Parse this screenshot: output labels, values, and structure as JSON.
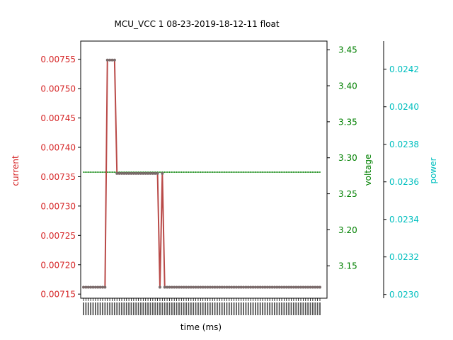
{
  "chart_data": {
    "type": "line",
    "title": "MCU_VCC   1   08-23-2019-18-12-11   float",
    "xlabel": "time (ms)",
    "axes": {
      "current": {
        "label": "current",
        "color": "#d62728",
        "ylim": [
          0.007143,
          0.007581
        ],
        "ticks": [
          0.00715,
          0.0072,
          0.00725,
          0.0073,
          0.00735,
          0.0074,
          0.00745,
          0.0075,
          0.00755
        ],
        "tick_labels": [
          "0.00715",
          "0.00720",
          "0.00725",
          "0.00730",
          "0.00735",
          "0.00740",
          "0.00745",
          "0.00750",
          "0.00755"
        ]
      },
      "voltage": {
        "label": "voltage",
        "color": "#008000",
        "ylim": [
          3.105,
          3.462
        ],
        "ticks": [
          3.15,
          3.2,
          3.25,
          3.3,
          3.35,
          3.4,
          3.45
        ],
        "tick_labels": [
          "3.15",
          "3.20",
          "3.25",
          "3.30",
          "3.35",
          "3.40",
          "3.45"
        ]
      },
      "power": {
        "label": "power",
        "color": "#00bfbf",
        "ylim": [
          0.02298,
          0.02435
        ],
        "ticks": [
          0.023,
          0.0232,
          0.0234,
          0.0236,
          0.0238,
          0.024,
          0.0242
        ],
        "tick_labels": [
          "0.0230",
          "0.0232",
          "0.0234",
          "0.0236",
          "0.0238",
          "0.0240",
          "0.0242"
        ]
      }
    },
    "x_count": 100,
    "series": [
      {
        "axis": "current",
        "color": "#b94a48",
        "values": [
          0.0071617,
          0.0071617,
          0.0071617,
          0.0071617,
          0.0071617,
          0.0071617,
          0.0071617,
          0.0071617,
          0.0071617,
          0.0071617,
          0.0075487,
          0.0075487,
          0.0075487,
          0.0075487,
          0.0073555,
          0.0073555,
          0.0073555,
          0.0073555,
          0.0073555,
          0.0073555,
          0.0073555,
          0.0073555,
          0.0073555,
          0.0073555,
          0.0073555,
          0.0073555,
          0.0073555,
          0.0073555,
          0.0073555,
          0.0073555,
          0.0073555,
          0.0073555,
          0.0071617,
          0.0073555,
          0.0071617,
          0.0071617,
          0.0071617,
          0.0071617,
          0.0071617,
          0.0071617,
          0.0071617,
          0.0071617,
          0.0071617,
          0.0071617,
          0.0071617,
          0.0071617,
          0.0071617,
          0.0071617,
          0.0071617,
          0.0071617,
          0.0071617,
          0.0071617,
          0.0071617,
          0.0071617,
          0.0071617,
          0.0071617,
          0.0071617,
          0.0071617,
          0.0071617,
          0.0071617,
          0.0071617,
          0.0071617,
          0.0071617,
          0.0071617,
          0.0071617,
          0.0071617,
          0.0071617,
          0.0071617,
          0.0071617,
          0.0071617,
          0.0071617,
          0.0071617,
          0.0071617,
          0.0071617,
          0.0071617,
          0.0071617,
          0.0071617,
          0.0071617,
          0.0071617,
          0.0071617,
          0.0071617,
          0.0071617,
          0.0071617,
          0.0071617,
          0.0071617,
          0.0071617,
          0.0071617,
          0.0071617,
          0.0071617,
          0.0071617,
          0.0071617,
          0.0071617,
          0.0071617,
          0.0071617,
          0.0071617,
          0.0071617,
          0.0071617,
          0.0071617,
          0.0071617,
          0.0071617
        ]
      },
      {
        "axis": "voltage",
        "color": "#008000",
        "constant": 3.28,
        "count": 100
      }
    ]
  }
}
